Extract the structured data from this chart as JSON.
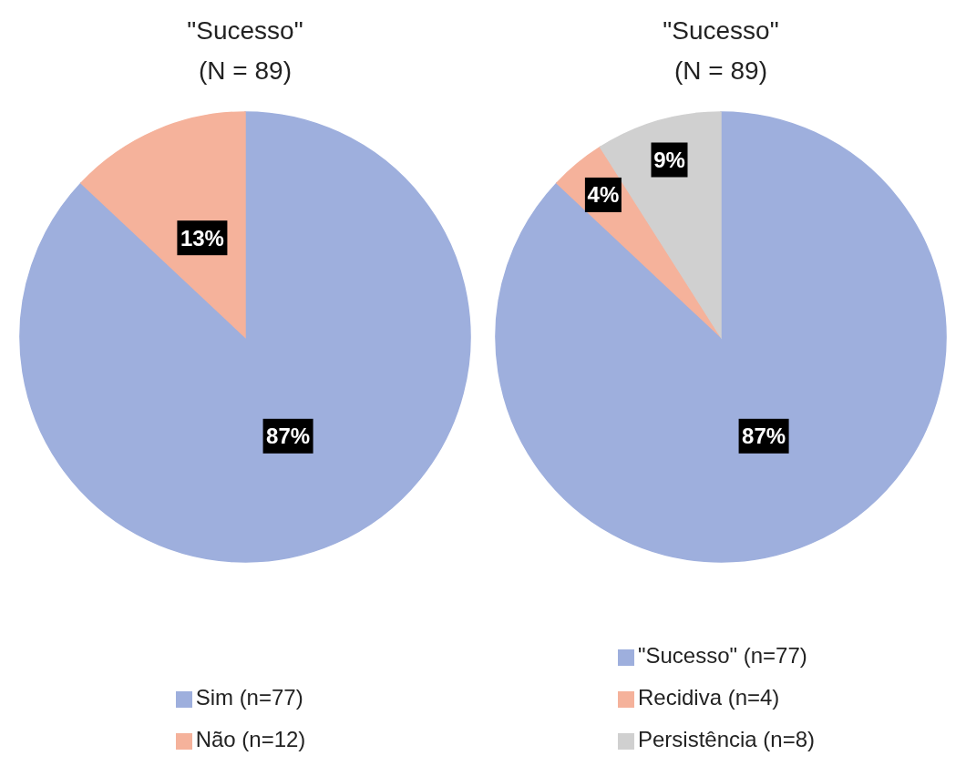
{
  "chart_data": [
    {
      "type": "pie",
      "title": "\"Sucesso\"",
      "subtitle": "(N = 89)",
      "categories": [
        "Sim (n=77)",
        "Não (n=12)"
      ],
      "values": [
        87,
        13
      ],
      "colors": [
        "#9eafdd",
        "#f5b29b"
      ],
      "value_labels": [
        "87%",
        "13%"
      ],
      "legend": "bottom"
    },
    {
      "type": "pie",
      "title": "\"Sucesso\"",
      "subtitle": "(N = 89)",
      "categories": [
        "\"Sucesso\" (n=77)",
        "Recidiva (n=4)",
        "Persistência (n=8)"
      ],
      "values": [
        87,
        4,
        9
      ],
      "colors": [
        "#9eafdd",
        "#f5b29b",
        "#d0d0d0"
      ],
      "value_labels": [
        "87%",
        "4%",
        "9%"
      ],
      "legend": "bottom"
    }
  ]
}
